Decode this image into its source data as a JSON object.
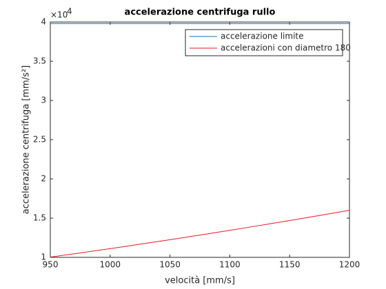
{
  "chart_data": {
    "type": "line",
    "title": "accelerazione centrifuga rullo",
    "x_label": "velocità [mm/s]",
    "y_label": "accelerazione centrifuga [mm/s²]",
    "y_exponent": {
      "base": "×10",
      "power": "4"
    },
    "x": [
      950,
      975,
      1000,
      1025,
      1050,
      1075,
      1100,
      1125,
      1150,
      1175,
      1200
    ],
    "series": [
      {
        "name": "accelerazione limite",
        "color": "#0072bd",
        "values": [
          3.98,
          3.98,
          3.98,
          3.98,
          3.98,
          3.98,
          3.98,
          3.98,
          3.98,
          3.98,
          3.98
        ]
      },
      {
        "name": "accelerazioni con diametro 180",
        "color": "#e8161f",
        "values": [
          1.0028,
          1.0563,
          1.1111,
          1.1674,
          1.225,
          1.284,
          1.3444,
          1.4063,
          1.4694,
          1.534,
          1.6
        ]
      }
    ],
    "xlim": [
      950,
      1200
    ],
    "xticks": [
      950,
      1000,
      1050,
      1100,
      1150,
      1200
    ],
    "ylim": [
      1,
      4
    ],
    "yticks": [
      1,
      1.5,
      2,
      2.5,
      3,
      3.5,
      4
    ],
    "legend": "top-right"
  }
}
